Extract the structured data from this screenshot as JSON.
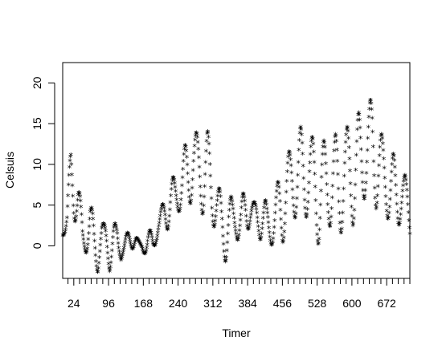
{
  "chart_data": {
    "type": "scatter",
    "title": "",
    "xlabel": "Timer",
    "ylabel": "Celsuis",
    "xlim": [
      1,
      720
    ],
    "ylim": [
      -4,
      22.5
    ],
    "x_ticks": [
      24,
      96,
      168,
      240,
      312,
      384,
      456,
      528,
      600,
      672
    ],
    "x_minor_step": 12,
    "y_ticks": [
      0,
      5,
      10,
      15,
      20
    ],
    "grid": false,
    "marker": "*",
    "color": "#000000",
    "anchors": [
      [
        1,
        2.0
      ],
      [
        10,
        2.5
      ],
      [
        18,
        9.0
      ],
      [
        24,
        7.0
      ],
      [
        33,
        5.0
      ],
      [
        42,
        0.5
      ],
      [
        50,
        1.5
      ],
      [
        58,
        3.0
      ],
      [
        66,
        0.0
      ],
      [
        74,
        -1.0
      ],
      [
        82,
        1.0
      ],
      [
        90,
        0.5
      ],
      [
        98,
        -1.0
      ],
      [
        106,
        0.5
      ],
      [
        114,
        1.0
      ],
      [
        122,
        -1.0
      ],
      [
        132,
        0.5
      ],
      [
        142,
        0.5
      ],
      [
        152,
        0.3
      ],
      [
        160,
        0.0
      ],
      [
        168,
        -0.5
      ],
      [
        178,
        0.5
      ],
      [
        188,
        0.5
      ],
      [
        196,
        1.5
      ],
      [
        204,
        3.0
      ],
      [
        214,
        4.0
      ],
      [
        224,
        5.0
      ],
      [
        234,
        6.0
      ],
      [
        242,
        7.0
      ],
      [
        252,
        8.0
      ],
      [
        262,
        9.0
      ],
      [
        272,
        10.0
      ],
      [
        282,
        9.5
      ],
      [
        292,
        8.5
      ],
      [
        300,
        9.0
      ],
      [
        310,
        7.0
      ],
      [
        320,
        5.0
      ],
      [
        330,
        2.0
      ],
      [
        340,
        1.5
      ],
      [
        350,
        3.0
      ],
      [
        360,
        3.5
      ],
      [
        370,
        2.5
      ],
      [
        380,
        4.5
      ],
      [
        392,
        4.0
      ],
      [
        404,
        3.0
      ],
      [
        414,
        3.5
      ],
      [
        424,
        2.0
      ],
      [
        434,
        3.0
      ],
      [
        444,
        3.5
      ],
      [
        456,
        4.5
      ],
      [
        468,
        7.0
      ],
      [
        480,
        8.0
      ],
      [
        490,
        9.0
      ],
      [
        500,
        8.5
      ],
      [
        512,
        9.0
      ],
      [
        522,
        7.0
      ],
      [
        532,
        6.0
      ],
      [
        542,
        7.0
      ],
      [
        552,
        8.0
      ],
      [
        562,
        7.5
      ],
      [
        572,
        7.0
      ],
      [
        582,
        8.0
      ],
      [
        592,
        9.0
      ],
      [
        602,
        8.5
      ],
      [
        614,
        10.0
      ],
      [
        624,
        11.0
      ],
      [
        634,
        12.0
      ],
      [
        642,
        12.5
      ],
      [
        650,
        10.0
      ],
      [
        660,
        9.0
      ],
      [
        670,
        8.0
      ],
      [
        680,
        7.0
      ],
      [
        690,
        6.5
      ],
      [
        700,
        6.0
      ],
      [
        710,
        5.5
      ],
      [
        720,
        4.0
      ]
    ],
    "amplitude": [
      [
        1,
        1.0
      ],
      [
        18,
        3.5
      ],
      [
        60,
        2.5
      ],
      [
        100,
        2.0
      ],
      [
        140,
        0.6
      ],
      [
        190,
        1.0
      ],
      [
        260,
        4.0
      ],
      [
        300,
        5.0
      ],
      [
        330,
        3.5
      ],
      [
        400,
        2.0
      ],
      [
        450,
        4.0
      ],
      [
        500,
        5.5
      ],
      [
        560,
        6.0
      ],
      [
        620,
        6.0
      ],
      [
        660,
        5.0
      ],
      [
        720,
        3.0
      ]
    ],
    "period": 24,
    "peak_phase": 14
  }
}
